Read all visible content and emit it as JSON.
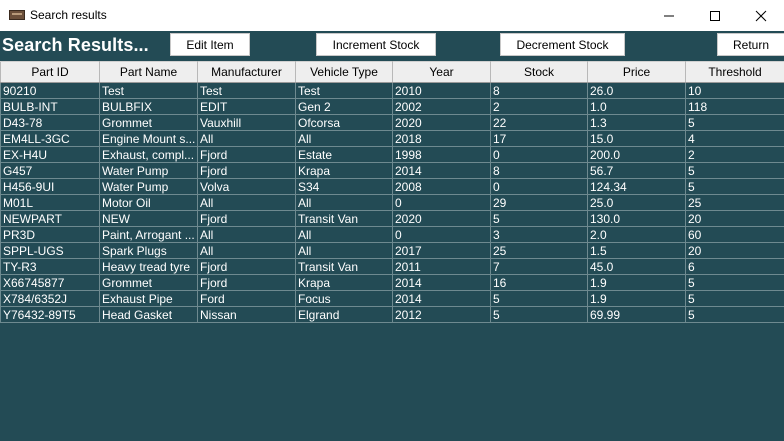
{
  "window": {
    "title": "Search results",
    "app_icon": "folder-icon"
  },
  "toolbar": {
    "heading": "Search Results...",
    "edit_label": "Edit Item",
    "increment_label": "Increment Stock",
    "decrement_label": "Decrement Stock",
    "return_label": "Return"
  },
  "colors": {
    "background": "#234b55",
    "text": "#ffffff"
  },
  "table": {
    "columns": [
      "Part ID",
      "Part Name",
      "Manufacturer",
      "Vehicle Type",
      "Year",
      "Stock",
      "Price",
      "Threshold"
    ],
    "rows": [
      [
        "90210",
        "Test",
        "Test",
        "Test",
        "2010",
        "8",
        "26.0",
        "10"
      ],
      [
        "BULB-INT",
        "BULBFIX",
        "EDIT",
        "Gen 2",
        "2002",
        "2",
        "1.0",
        "118"
      ],
      [
        "D43-78",
        "Grommet",
        "Vauxhill",
        "Ofcorsa",
        "2020",
        "22",
        "1.3",
        "5"
      ],
      [
        "EM4LL-3GC",
        "Engine Mount s...",
        "All",
        "All",
        "2018",
        "17",
        "15.0",
        "4"
      ],
      [
        "EX-H4U",
        "Exhaust, compl...",
        "Fjord",
        "Estate",
        "1998",
        "0",
        "200.0",
        "2"
      ],
      [
        "G457",
        "Water Pump",
        "Fjord",
        "Krapa",
        "2014",
        "8",
        "56.7",
        "5"
      ],
      [
        "H456-9UI",
        "Water Pump",
        "Volva",
        "S34",
        "2008",
        "0",
        "124.34",
        "5"
      ],
      [
        "M01L",
        "Motor Oil",
        "All",
        "All",
        "0",
        "29",
        "25.0",
        "25"
      ],
      [
        "NEWPART",
        "NEW",
        "Fjord",
        "Transit Van",
        "2020",
        "5",
        "130.0",
        "20"
      ],
      [
        "PR3D",
        "Paint, Arrogant ...",
        "All",
        "All",
        "0",
        "3",
        "2.0",
        "60"
      ],
      [
        "SPPL-UGS",
        "Spark Plugs",
        "All",
        "All",
        "2017",
        "25",
        "1.5",
        "20"
      ],
      [
        "TY-R3",
        "Heavy tread tyre",
        "Fjord",
        "Transit Van",
        "2011",
        "7",
        "45.0",
        "6"
      ],
      [
        "X66745877",
        "Grommet",
        "Fjord",
        "Krapa",
        "2014",
        "16",
        "1.9",
        "5"
      ],
      [
        "X784/6352J",
        "Exhaust Pipe",
        "Ford",
        "Focus",
        "2014",
        "5",
        "1.9",
        "5"
      ],
      [
        "Y76432-89T5",
        "Head Gasket",
        "Nissan",
        "Elgrand",
        "2012",
        "5",
        "69.99",
        "5"
      ]
    ]
  }
}
